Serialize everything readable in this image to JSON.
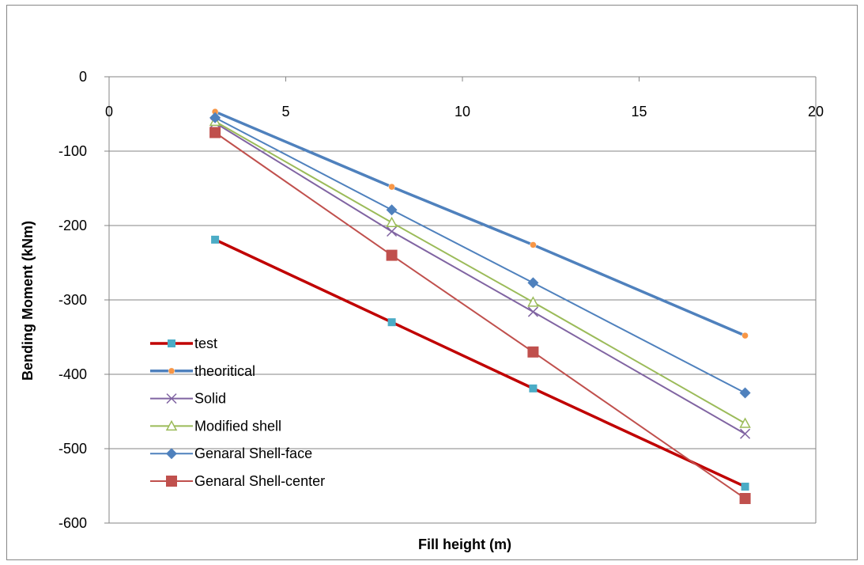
{
  "chart_data": {
    "type": "line",
    "title": "",
    "xlabel": "Fill height (m)",
    "ylabel": "Bending Moment (kNm)",
    "xlim": [
      0,
      20
    ],
    "ylim": [
      -600,
      0
    ],
    "xticks": [
      0,
      5,
      10,
      15,
      20
    ],
    "yticks": [
      0,
      -100,
      -200,
      -300,
      -400,
      -500,
      -600
    ],
    "grid": "horizontal",
    "legend": "bottom-left",
    "x_axis_position": "top",
    "x": [
      3,
      8,
      12,
      18
    ],
    "series": [
      {
        "name": "test",
        "values": [
          -219,
          -330,
          -419,
          -551
        ],
        "color": "#C00000",
        "marker": "square",
        "marker_color": "#4BACC6",
        "line_width": 3.5
      },
      {
        "name": "theoritical",
        "values": [
          -47,
          -148,
          -226,
          -348
        ],
        "color": "#4F81BD",
        "marker": "circle",
        "marker_color": "#F79646",
        "line_width": 3.5
      },
      {
        "name": "Solid",
        "values": [
          -62,
          -208,
          -316,
          -480
        ],
        "color": "#8064A2",
        "marker": "x",
        "marker_color": "#8064A2",
        "line_width": 2
      },
      {
        "name": "Modified shell",
        "values": [
          -60,
          -196,
          -303,
          -466
        ],
        "color": "#9BBB59",
        "marker": "triangle",
        "marker_color": "#9BBB59",
        "line_width": 2
      },
      {
        "name": "Genaral Shell-face",
        "values": [
          -55,
          -179,
          -277,
          -425
        ],
        "color": "#4F81BD",
        "marker": "diamond",
        "marker_color": "#4F81BD",
        "line_width": 2
      },
      {
        "name": "Genaral Shell-center",
        "values": [
          -75,
          -240,
          -370,
          -567
        ],
        "color": "#C0504D",
        "marker": "bigsquare",
        "marker_color": "#C0504D",
        "line_width": 2
      }
    ]
  }
}
